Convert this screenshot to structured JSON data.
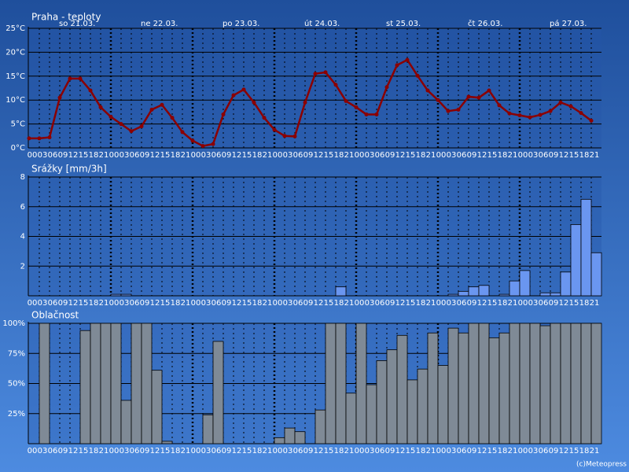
{
  "chart_data": [
    {
      "type": "line",
      "title": "Praha - teploty",
      "color": "#8b0000",
      "day_labels": [
        "so 21.03.",
        "ne 22.03.",
        "po 23.03.",
        "út 24.03.",
        "st 25.03.",
        "čt 26.03.",
        "pá 27.03."
      ],
      "categories": [
        "00",
        "03",
        "06",
        "09",
        "12",
        "15",
        "18",
        "21",
        "00",
        "03",
        "06",
        "09",
        "12",
        "15",
        "18",
        "21",
        "00",
        "03",
        "06",
        "09",
        "12",
        "15",
        "18",
        "21",
        "00",
        "03",
        "06",
        "09",
        "12",
        "15",
        "18",
        "21",
        "00",
        "03",
        "06",
        "09",
        "12",
        "15",
        "18",
        "21",
        "00",
        "03",
        "06",
        "09",
        "12",
        "15",
        "18",
        "21",
        "00",
        "03",
        "06",
        "09",
        "12",
        "15",
        "18",
        "21"
      ],
      "values": [
        2.0,
        2.0,
        2.2,
        10.5,
        14.5,
        14.5,
        12,
        8.5,
        6.5,
        5,
        3.5,
        4.5,
        8,
        9,
        6.3,
        3.3,
        1.5,
        0.4,
        0.8,
        7,
        11,
        12.2,
        9.5,
        6.3,
        3.8,
        2.5,
        2.4,
        9.5,
        15.5,
        15.8,
        13.2,
        9.8,
        8.5,
        7,
        7,
        12.7,
        17.3,
        18.4,
        15.1,
        12,
        10,
        7.7,
        8,
        10.7,
        10.5,
        12,
        8.9,
        7.2,
        6.8,
        6.4,
        6.9,
        7.7,
        9.5,
        8.7,
        7.3,
        5.7
      ],
      "ylim": [
        0,
        25
      ],
      "yticks": [
        {
          "value": 0,
          "label": "0°C"
        },
        {
          "value": 5,
          "label": "5°C"
        },
        {
          "value": 10,
          "label": "10°C"
        },
        {
          "value": 15,
          "label": "15°C"
        },
        {
          "value": 20,
          "label": "20°C"
        },
        {
          "value": 25,
          "label": "25°C"
        }
      ],
      "grid": true
    },
    {
      "type": "bar",
      "title": "Srážky [mm/3h]",
      "color": "#6a96f0",
      "categories": [
        "00",
        "03",
        "06",
        "09",
        "12",
        "15",
        "18",
        "21",
        "00",
        "03",
        "06",
        "09",
        "12",
        "15",
        "18",
        "21",
        "00",
        "03",
        "06",
        "09",
        "12",
        "15",
        "18",
        "21",
        "00",
        "03",
        "06",
        "09",
        "12",
        "15",
        "18",
        "21",
        "00",
        "03",
        "06",
        "09",
        "12",
        "15",
        "18",
        "21",
        "00",
        "03",
        "06",
        "09",
        "12",
        "15",
        "18",
        "21",
        "00",
        "03",
        "06",
        "09",
        "12",
        "15",
        "18",
        "21"
      ],
      "values": [
        0,
        0,
        0,
        0,
        0,
        0,
        0,
        0,
        0.1,
        0.1,
        0,
        0,
        0,
        0,
        0,
        0,
        0,
        0,
        0,
        0,
        0,
        0,
        0,
        0,
        0,
        0,
        0,
        0,
        0,
        0,
        0.6,
        0,
        0,
        0,
        0,
        0,
        0,
        0,
        0,
        0,
        0,
        0.1,
        0.3,
        0.6,
        0.7,
        0,
        0.1,
        1.0,
        1.7,
        0,
        0.2,
        0.2,
        1.6,
        4.8,
        6.5,
        2.9
      ],
      "ylim": [
        0,
        8
      ],
      "yticks": [
        2,
        4,
        6,
        8
      ],
      "grid": true
    },
    {
      "type": "bar",
      "title": "Oblačnost",
      "color": "#7f8a96",
      "categories": [
        "00",
        "03",
        "06",
        "09",
        "12",
        "15",
        "18",
        "21",
        "00",
        "03",
        "06",
        "09",
        "12",
        "15",
        "18",
        "21",
        "00",
        "03",
        "06",
        "09",
        "12",
        "15",
        "18",
        "21",
        "00",
        "03",
        "06",
        "09",
        "12",
        "15",
        "18",
        "21",
        "00",
        "03",
        "06",
        "09",
        "12",
        "15",
        "18",
        "21",
        "00",
        "03",
        "06",
        "09",
        "12",
        "15",
        "18",
        "21",
        "00",
        "03",
        "06",
        "09",
        "12",
        "15",
        "18",
        "21"
      ],
      "values": [
        0,
        100,
        0,
        0,
        0,
        94,
        100,
        100,
        100,
        36,
        100,
        100,
        61,
        2,
        0,
        0,
        0,
        24,
        85,
        0,
        0,
        0,
        0,
        0,
        5,
        13,
        10,
        0,
        28,
        100,
        100,
        42,
        100,
        49,
        69,
        78,
        90,
        53,
        62,
        92,
        65,
        96,
        92,
        100,
        100,
        88,
        92,
        100,
        100,
        100,
        98,
        100,
        100,
        100,
        100,
        100
      ],
      "ylim": [
        0,
        100
      ],
      "yticks": [
        {
          "value": 25,
          "label": "25%"
        },
        {
          "value": 50,
          "label": "50%"
        },
        {
          "value": 75,
          "label": "75%"
        },
        {
          "value": 100,
          "label": "100%"
        }
      ],
      "grid": true
    }
  ],
  "footer": "(c)Meteopress"
}
